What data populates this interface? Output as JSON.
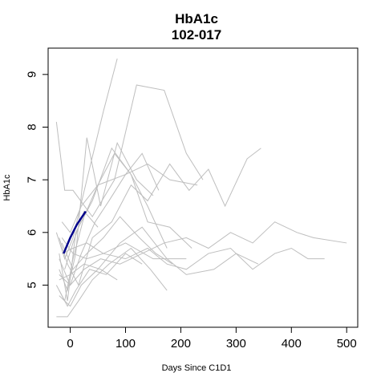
{
  "chart_data": {
    "type": "line",
    "title": "HbA1c",
    "subtitle": "102-017",
    "xlabel": "Days Since C1D1",
    "ylabel": "HbA1c",
    "xlim": [
      -40,
      520
    ],
    "ylim": [
      4.2,
      9.5
    ],
    "xticks": [
      0,
      100,
      200,
      300,
      400,
      500
    ],
    "yticks": [
      5,
      6,
      7,
      8,
      9
    ],
    "grid": false,
    "background_color": "#bebebe",
    "highlight_color": "#00008b",
    "background_series": [
      {
        "x": [
          -25,
          -10,
          5,
          30,
          60,
          85
        ],
        "y": [
          6.0,
          5.5,
          5.9,
          7.0,
          8.3,
          9.3
        ]
      },
      {
        "x": [
          -25,
          -10,
          5,
          40,
          80,
          120,
          170,
          210,
          240
        ],
        "y": [
          8.1,
          6.8,
          6.8,
          6.3,
          7.0,
          8.8,
          8.7,
          7.5,
          7.0
        ]
      },
      {
        "x": [
          -20,
          -5,
          15,
          40,
          75,
          110,
          140,
          180,
          215,
          250,
          280,
          320,
          345
        ],
        "y": [
          5.9,
          5.4,
          5.0,
          5.9,
          6.2,
          6.9,
          6.6,
          7.3,
          6.8,
          7.2,
          6.5,
          7.4,
          7.6
        ]
      },
      {
        "x": [
          -20,
          0,
          25,
          55,
          90,
          130,
          170,
          210,
          250,
          290,
          330,
          370,
          410,
          440,
          500
        ],
        "y": [
          5.2,
          5.0,
          5.3,
          5.5,
          5.4,
          5.6,
          5.8,
          5.9,
          5.7,
          6.0,
          5.8,
          6.2,
          6.0,
          5.9,
          5.8
        ]
      },
      {
        "x": [
          -15,
          5,
          30,
          60,
          100,
          140,
          175,
          210,
          250,
          290,
          330,
          370,
          400,
          430,
          460
        ],
        "y": [
          5.6,
          5.7,
          5.8,
          5.6,
          5.5,
          5.7,
          5.4,
          5.3,
          5.6,
          5.7,
          5.3,
          5.6,
          5.7,
          5.5,
          5.5
        ]
      },
      {
        "x": [
          -20,
          0,
          20,
          50,
          90,
          130,
          175,
          210,
          260,
          300,
          340
        ],
        "y": [
          4.8,
          4.6,
          5.0,
          5.3,
          5.8,
          6.1,
          5.5,
          5.2,
          5.3,
          5.6,
          5.4
        ]
      },
      {
        "x": [
          -15,
          0,
          20,
          50,
          100,
          140,
          180,
          230
        ],
        "y": [
          6.2,
          6.0,
          6.5,
          6.9,
          7.1,
          7.3,
          7.0,
          6.9
        ]
      },
      {
        "x": [
          -20,
          -5,
          10,
          30,
          55,
          85,
          120,
          150
        ],
        "y": [
          5.3,
          4.9,
          5.6,
          7.8,
          6.5,
          7.7,
          7.0,
          6.7
        ]
      },
      {
        "x": [
          -25,
          -10,
          5,
          25,
          50,
          80,
          110,
          140,
          175
        ],
        "y": [
          5.0,
          4.7,
          5.5,
          6.3,
          6.9,
          7.5,
          7.1,
          6.5,
          5.7
        ]
      },
      {
        "x": [
          -20,
          0,
          20,
          45,
          70,
          100,
          130,
          160
        ],
        "y": [
          5.5,
          5.0,
          5.6,
          6.2,
          6.6,
          7.1,
          7.5,
          6.8
        ]
      },
      {
        "x": [
          -15,
          5,
          30,
          60,
          90,
          125,
          155,
          185
        ],
        "y": [
          5.8,
          5.3,
          5.6,
          5.9,
          6.3,
          5.9,
          5.6,
          5.4
        ]
      },
      {
        "x": [
          -20,
          -5,
          10,
          35,
          65,
          100,
          130
        ],
        "y": [
          4.9,
          4.6,
          4.9,
          5.3,
          5.2,
          5.6,
          5.4
        ]
      },
      {
        "x": [
          -25,
          -5,
          15,
          40,
          70,
          110,
          145,
          175
        ],
        "y": [
          4.4,
          4.4,
          4.7,
          5.1,
          5.4,
          5.7,
          5.3,
          4.9
        ]
      },
      {
        "x": [
          -20,
          0,
          25,
          55,
          85
        ],
        "y": [
          5.1,
          5.2,
          5.4,
          5.3,
          5.1
        ]
      },
      {
        "x": [
          -15,
          5,
          30,
          60,
          100,
          150,
          210
        ],
        "y": [
          5.9,
          5.6,
          5.5,
          5.6,
          5.8,
          5.5,
          5.5
        ]
      },
      {
        "x": [
          -20,
          -5,
          10,
          40,
          75,
          110,
          140,
          180,
          220
        ],
        "y": [
          5.6,
          4.7,
          6.0,
          6.6,
          7.6,
          7.1,
          6.2,
          6.1,
          5.7
        ]
      },
      {
        "x": [
          -10,
          5,
          25,
          50
        ],
        "y": [
          5.3,
          5.8,
          6.4,
          6.1
        ]
      }
    ],
    "highlight_series": {
      "x": [
        -12,
        0,
        12,
        28
      ],
      "y": [
        5.6,
        5.9,
        6.15,
        6.4
      ]
    }
  }
}
